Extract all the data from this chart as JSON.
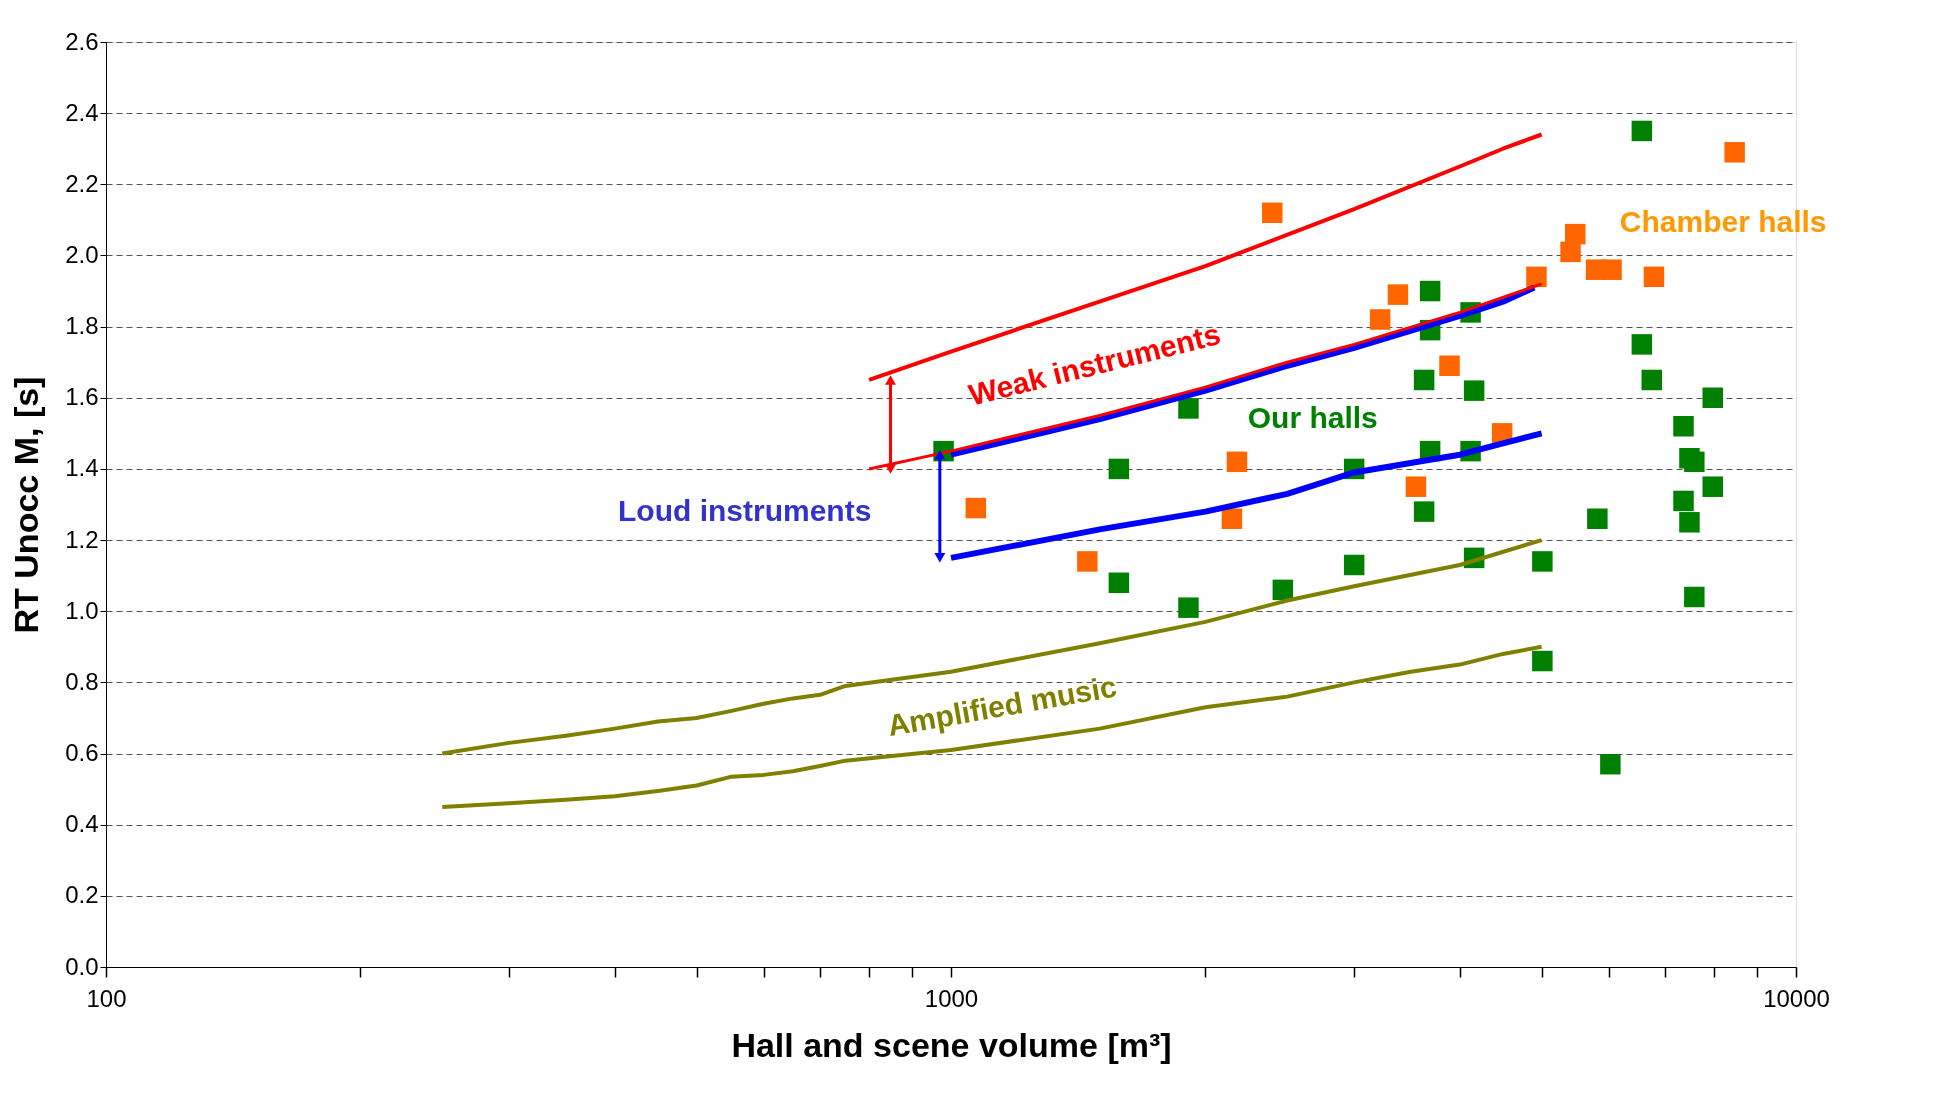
{
  "chart_data": {
    "type": "line",
    "xlabel": "Hall and scene volume [m³]",
    "ylabel": "RT Unocc M, [s]",
    "log": "x",
    "xlim": [
      100,
      10000
    ],
    "ylim": [
      0,
      2.6
    ],
    "xticks": [
      100,
      {
        "value": 200,
        "label": null
      },
      {
        "value": 300,
        "label": null
      },
      {
        "value": 400,
        "label": null
      },
      {
        "value": 500,
        "label": null
      },
      {
        "value": 600,
        "label": null
      },
      {
        "value": 700,
        "label": null
      },
      {
        "value": 800,
        "label": null
      },
      {
        "value": 900,
        "label": null
      },
      1000,
      {
        "value": 2000,
        "label": null
      },
      {
        "value": 3000,
        "label": null
      },
      {
        "value": 4000,
        "label": null
      },
      {
        "value": 5000,
        "label": null
      },
      {
        "value": 6000,
        "label": null
      },
      {
        "value": 7000,
        "label": null
      },
      {
        "value": 8000,
        "label": null
      },
      {
        "value": 9000,
        "label": null
      },
      10000
    ],
    "yticks": [
      {
        "value": 0,
        "label": "0.0"
      },
      0.2,
      0.4,
      0.6,
      0.8,
      {
        "value": 1,
        "label": "1.0"
      },
      1.2,
      1.4,
      1.6,
      1.8,
      {
        "value": 2,
        "label": "2.0"
      },
      2.2,
      2.4,
      2.6
    ],
    "grid": "y",
    "marker": "none",
    "line_style": "solid",
    "series": [
      {
        "type": "line",
        "color": "#ff0000",
        "x": [
          800,
          1000,
          2000,
          3000,
          4000,
          4500,
          5000
        ],
        "values": [
          1.65,
          1.73,
          1.97,
          2.13,
          2.25,
          2.3,
          2.34
        ]
      },
      {
        "type": "line",
        "color": "#ff0000",
        "x": [
          800,
          1000,
          1500,
          2000,
          2500,
          3000,
          4000,
          5000
        ],
        "values": [
          1.4,
          1.45,
          1.55,
          1.63,
          1.7,
          1.75,
          1.84,
          1.92
        ]
      },
      {
        "type": "line",
        "color": "#0000ff",
        "x": [
          1000,
          1500,
          2000,
          2500,
          3000,
          4000,
          4500,
          4900
        ],
        "values": [
          1.44,
          1.54,
          1.62,
          1.69,
          1.74,
          1.83,
          1.87,
          1.91
        ]
      },
      {
        "type": "line",
        "color": "#0000ff",
        "x": [
          1000,
          1500,
          2000,
          2500,
          3000,
          4000,
          5000
        ],
        "values": [
          1.15,
          1.23,
          1.28,
          1.33,
          1.39,
          1.44,
          1.5
        ]
      },
      {
        "type": "line",
        "color": "#808000",
        "x": [
          250,
          300,
          350,
          400,
          450,
          500,
          550,
          600,
          650,
          700,
          750,
          1000,
          1500,
          2000,
          2500,
          3000,
          4000,
          5000
        ],
        "values": [
          0.6,
          0.63,
          0.65,
          0.67,
          0.69,
          0.7,
          0.72,
          0.74,
          0.755,
          0.765,
          0.79,
          0.83,
          0.91,
          0.97,
          1.03,
          1.07,
          1.13,
          1.2
        ]
      },
      {
        "type": "line",
        "color": "#808000",
        "x": [
          250,
          300,
          350,
          400,
          450,
          500,
          550,
          600,
          650,
          700,
          750,
          1000,
          1500,
          2000,
          2500,
          3000,
          3500,
          4000,
          4500,
          5000
        ],
        "values": [
          0.45,
          0.46,
          0.47,
          0.48,
          0.495,
          0.51,
          0.535,
          0.54,
          0.55,
          0.565,
          0.58,
          0.61,
          0.67,
          0.73,
          0.76,
          0.8,
          0.83,
          0.85,
          0.88,
          0.9
        ]
      },
      {
        "type": "scatter",
        "marker": "square",
        "color": "#008000",
        "x": [
          980,
          1580,
          1580,
          1910,
          1910,
          2470,
          3000,
          3000,
          3630,
          3630,
          3690,
          3690,
          3690,
          4120,
          4160,
          4120,
          4160,
          5010,
          5010,
          5820,
          6030,
          6570,
          6570,
          6750,
          7360,
          7480,
          7580,
          7360,
          7480,
          7580,
          7970,
          7970
        ],
        "values": [
          1.45,
          1.4,
          1.08,
          1.57,
          1.01,
          1.06,
          1.4,
          1.13,
          1.65,
          1.28,
          1.9,
          1.79,
          1.45,
          1.84,
          1.62,
          1.45,
          1.15,
          1.14,
          0.86,
          1.26,
          0.57,
          2.35,
          1.75,
          1.65,
          1.52,
          1.43,
          1.42,
          1.31,
          1.25,
          1.04,
          1.6,
          1.35
        ]
      },
      {
        "type": "scatter",
        "marker": "square",
        "color": "#ff6600",
        "x": [
          1070,
          1450,
          2150,
          2180,
          2400,
          3220,
          3380,
          3550,
          3890,
          4490,
          4930,
          5410,
          5480,
          5800,
          6050,
          6790,
          8460
        ],
        "values": [
          1.29,
          1.14,
          1.26,
          1.42,
          2.12,
          1.82,
          1.89,
          1.35,
          1.69,
          1.5,
          1.94,
          2.01,
          2.06,
          1.96,
          1.96,
          1.94,
          2.29
        ]
      }
    ],
    "annotations": [
      "Weak instruments",
      {
        "text": "Loud instruments",
        "x": 970,
        "y": 1.44
      },
      "Our halls",
      "Chamber halls",
      "Amplified music"
    ]
  }
}
